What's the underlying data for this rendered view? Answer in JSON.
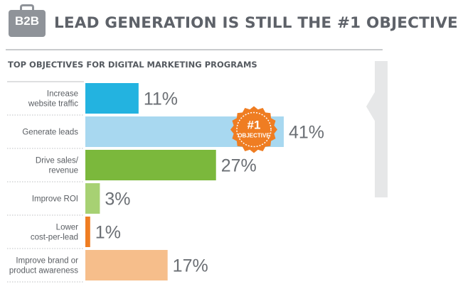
{
  "header": {
    "badge": "B2B",
    "title": "LEAD GENERATION IS STILL THE #1 OBJECTIVE"
  },
  "chart_data": {
    "type": "bar",
    "orientation": "horizontal",
    "title": "TOP OBJECTIVES FOR DIGITAL MARKETING PROGRAMS",
    "categories": [
      [
        "Increase",
        "website traffic"
      ],
      [
        "Generate leads"
      ],
      [
        "Drive sales/",
        "revenue"
      ],
      [
        "Improve ROI"
      ],
      [
        "Lower",
        "cost-per-lead"
      ],
      [
        "Improve brand or",
        "product awareness"
      ]
    ],
    "values": [
      11,
      41,
      27,
      3,
      1,
      17
    ],
    "value_labels": [
      "11%",
      "41%",
      "27%",
      "3%",
      "1%",
      "17%"
    ],
    "colors": [
      "#23b3e0",
      "#a8d8f0",
      "#7bb83c",
      "#a7d173",
      "#ef7d22",
      "#f6be8b"
    ],
    "xlim": [
      0,
      41
    ],
    "grid": false,
    "legend": "none",
    "annotation": {
      "lines": [
        "#1",
        "OBJECTIVE"
      ],
      "target_index": 1,
      "color": "#ef7d22"
    }
  }
}
